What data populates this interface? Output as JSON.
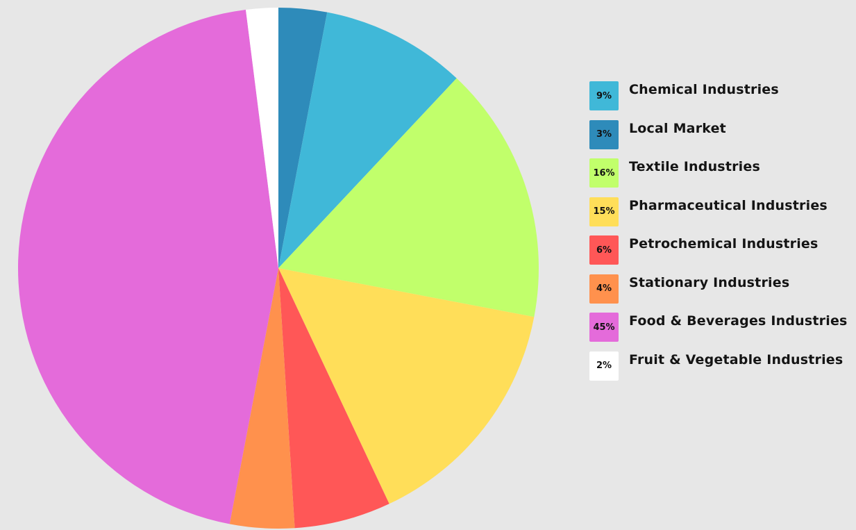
{
  "chart_data": {
    "type": "pie",
    "start": "top",
    "direction": "clockwise",
    "legend_placement": "right",
    "slice_order": [
      "Local Market",
      "Chemical Industries",
      "Textile Industries",
      "Pharmaceutical Industries",
      "Petrochemical Industries",
      "Stationary Industries",
      "Food & Beverages Industries",
      "Fruit & Vegetable Industries"
    ],
    "legend": [
      {
        "name": "Chemical Industries",
        "value": 9,
        "label": "9%",
        "color": "#40b8d8"
      },
      {
        "name": "Local Market",
        "value": 3,
        "label": "3%",
        "color": "#2e8bba"
      },
      {
        "name": "Textile Industries",
        "value": 16,
        "label": "16%",
        "color": "#c1ff6b"
      },
      {
        "name": "Pharmaceutical Industries",
        "value": 15,
        "label": "15%",
        "color": "#ffde59"
      },
      {
        "name": "Petrochemical Industries",
        "value": 6,
        "label": "6%",
        "color": "#ff5757"
      },
      {
        "name": "Stationary Industries",
        "value": 4,
        "label": "4%",
        "color": "#ff914d"
      },
      {
        "name": "Food & Beverages Industries",
        "value": 45,
        "label": "45%",
        "color": "#e46bda"
      },
      {
        "name": "Fruit & Vegetable Industries",
        "value": 2,
        "label": "2%",
        "color": "#ffffff"
      }
    ],
    "background": "#e7e7e7"
  }
}
